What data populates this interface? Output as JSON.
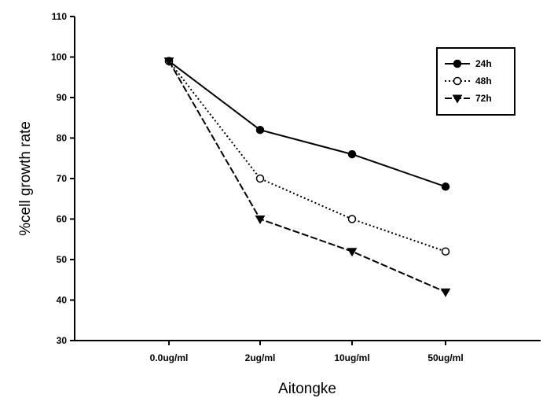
{
  "chart_data": {
    "type": "line",
    "title": "",
    "xlabel": "Aitongke",
    "ylabel": "%cell growth rate",
    "categories": [
      "0.0ug/ml",
      "2ug/ml",
      "10ug/ml",
      "50ug/ml"
    ],
    "ylim": [
      30,
      110
    ],
    "yticks": [
      30,
      40,
      50,
      60,
      70,
      80,
      90,
      100,
      110
    ],
    "grid": false,
    "legend_position": "top-right",
    "series": [
      {
        "name": "24h",
        "values": [
          99,
          82,
          76,
          68
        ],
        "marker": "filled-circle",
        "line_style": "solid"
      },
      {
        "name": "48h",
        "values": [
          99,
          70,
          60,
          52
        ],
        "marker": "open-circle",
        "line_style": "dotted"
      },
      {
        "name": "72h",
        "values": [
          99,
          60,
          52,
          42
        ],
        "marker": "filled-triangle-down",
        "line_style": "dashed"
      }
    ]
  }
}
